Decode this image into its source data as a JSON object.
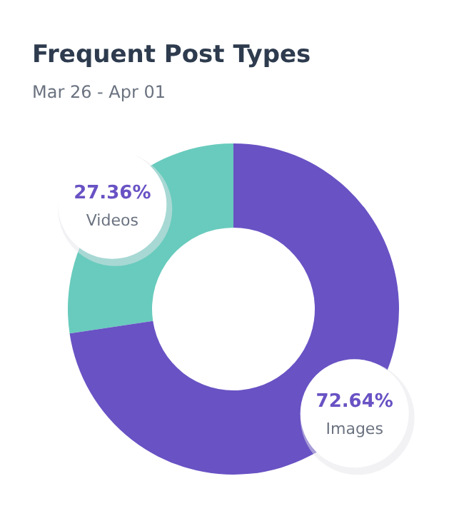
{
  "chart_data": {
    "type": "donut",
    "title": "Frequent Post Types",
    "subtitle": "Mar 26 - Apr 01",
    "categories": [
      "Videos",
      "Images"
    ],
    "values": [
      27.36,
      72.64
    ],
    "colors": [
      "#68cbbd",
      "#6952c4"
    ],
    "value_labels": [
      "27.36%",
      "72.64%"
    ]
  }
}
